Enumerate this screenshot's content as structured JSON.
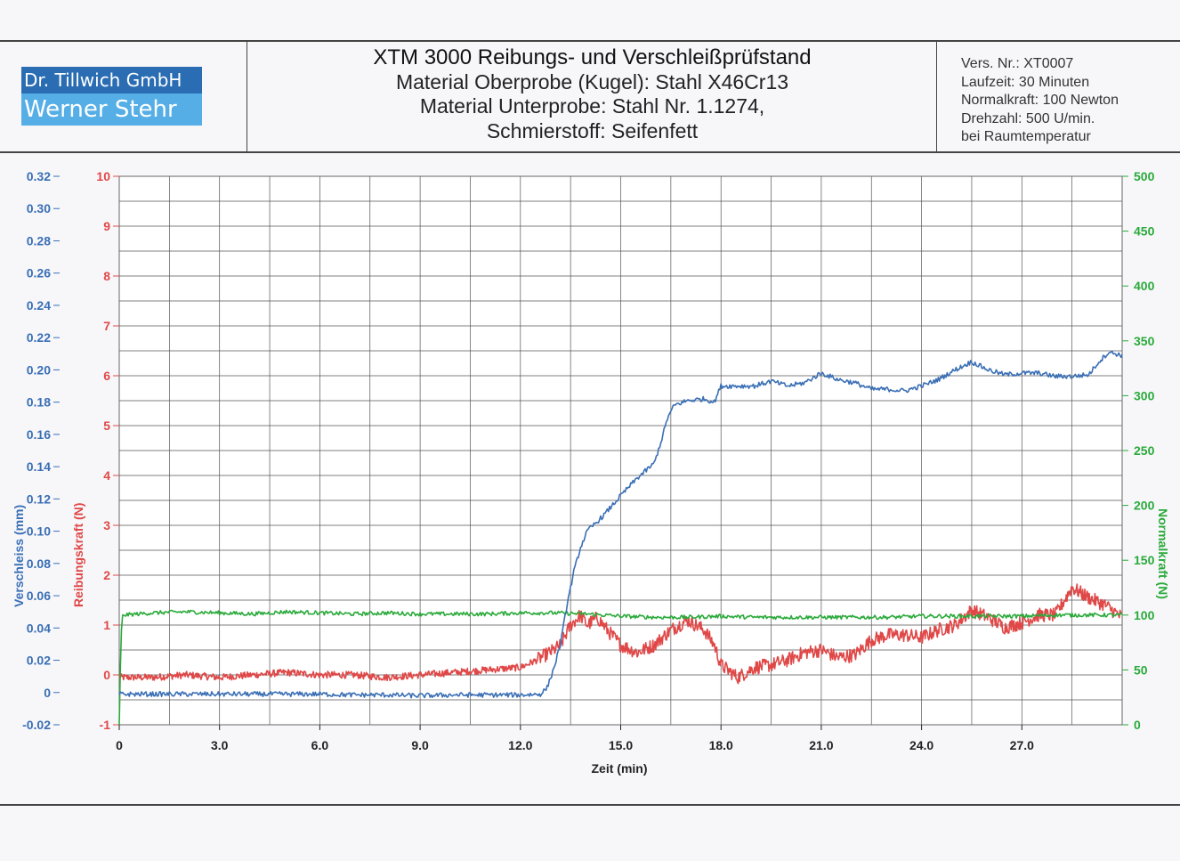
{
  "logo": {
    "line1": "Dr. Tillwich GmbH",
    "line2": "Werner Stehr"
  },
  "header": {
    "title": "XTM 3000 Reibungs- und Verschleißprüfstand",
    "line2": "Material Oberprobe (Kugel): Stahl X46Cr13",
    "line3": "Material Unterprobe: Stahl Nr. 1.1274,",
    "line4": "Schmierstoff: Seifenfett"
  },
  "info": {
    "line1": "Vers. Nr.: XT0007",
    "line2": "Laufzeit: 30 Minuten",
    "line3": "Normalkraft: 100 Newton",
    "line4": "Drehzahl: 500 U/min.",
    "line5": "bei Raumtemperatur"
  },
  "colors": {
    "blue": "#3a6fb5",
    "red": "#e04848",
    "green": "#2aaa3a",
    "grid": "#555555"
  },
  "chart_data": {
    "type": "line",
    "xlabel": "Zeit (min)",
    "xlim": [
      0,
      30
    ],
    "x_ticks": [
      0,
      3,
      6,
      9,
      12,
      15,
      18,
      21,
      24,
      27
    ],
    "x_tick_labels": [
      "0",
      "3.0",
      "6.0",
      "9.0",
      "12.0",
      "15.0",
      "18.0",
      "21.0",
      "24.0",
      "27.0"
    ],
    "grid": true,
    "axes": {
      "verschleiss": {
        "label": "Verschleiss (mm)",
        "ylim": [
          -0.02,
          0.32
        ],
        "ticks": [
          -0.02,
          0,
          0.02,
          0.04,
          0.06,
          0.08,
          0.1,
          0.12,
          0.14,
          0.16,
          0.18,
          0.2,
          0.22,
          0.24,
          0.26,
          0.28,
          0.3,
          0.32
        ],
        "tick_labels": [
          "-0.02",
          "0",
          "0.02",
          "0.04",
          "0.06",
          "0.08",
          "0.10",
          "0.12",
          "0.14",
          "0.16",
          "0.18",
          "0.20",
          "0.22",
          "0.24",
          "0.26",
          "0.28",
          "0.30",
          "0.32"
        ]
      },
      "reibungskraft": {
        "label": "Reibungskraft (N)",
        "ylim": [
          -1,
          10
        ],
        "ticks": [
          -1,
          0,
          1,
          2,
          3,
          4,
          5,
          6,
          7,
          8,
          9,
          10
        ],
        "tick_labels": [
          "-1",
          "0",
          "1",
          "2",
          "3",
          "4",
          "5",
          "6",
          "7",
          "8",
          "9",
          "10"
        ]
      },
      "normalkraft": {
        "label": "Normalkraft (N)",
        "ylim": [
          0,
          500
        ],
        "ticks": [
          0,
          50,
          100,
          150,
          200,
          250,
          300,
          350,
          400,
          450,
          500
        ],
        "tick_labels": [
          "0",
          "50",
          "100",
          "150",
          "200",
          "250",
          "300",
          "350",
          "400",
          "450",
          "500"
        ]
      }
    },
    "series": [
      {
        "axis": "verschleiss",
        "x": [
          0,
          1,
          2,
          3,
          4,
          5,
          6,
          7,
          8,
          9,
          10,
          11,
          12,
          12.6,
          12.8,
          13.0,
          13.2,
          13.4,
          13.6,
          13.8,
          14.0,
          14.5,
          15.0,
          15.5,
          16.0,
          16.2,
          16.4,
          16.6,
          17.0,
          17.5,
          17.8,
          18.0,
          18.5,
          19.0,
          19.5,
          20.0,
          20.5,
          21.0,
          21.5,
          22.0,
          22.5,
          23.0,
          23.5,
          24.0,
          24.5,
          25.0,
          25.5,
          26.0,
          26.5,
          27.0,
          27.5,
          28.0,
          28.5,
          29.0,
          29.3,
          29.6,
          30.0
        ],
        "values": [
          -0.001,
          -0.001,
          -0.001,
          -0.001,
          -0.001,
          -0.001,
          -0.001,
          -0.0015,
          -0.0015,
          -0.002,
          -0.0015,
          -0.0015,
          -0.0015,
          -0.001,
          0.003,
          0.015,
          0.03,
          0.055,
          0.075,
          0.09,
          0.1,
          0.11,
          0.122,
          0.133,
          0.142,
          0.155,
          0.17,
          0.178,
          0.181,
          0.182,
          0.18,
          0.19,
          0.19,
          0.19,
          0.193,
          0.19,
          0.192,
          0.198,
          0.194,
          0.192,
          0.188,
          0.188,
          0.187,
          0.19,
          0.194,
          0.2,
          0.205,
          0.2,
          0.197,
          0.198,
          0.198,
          0.196,
          0.196,
          0.197,
          0.205,
          0.211,
          0.209
        ]
      },
      {
        "axis": "reibungskraft",
        "x": [
          0,
          1,
          2,
          3,
          4,
          5,
          6,
          7,
          8,
          9,
          10,
          11,
          12,
          12.5,
          13.0,
          13.2,
          13.5,
          13.8,
          14.0,
          14.3,
          14.6,
          15.0,
          15.5,
          16.0,
          16.5,
          17.0,
          17.5,
          17.8,
          18.0,
          18.5,
          19.0,
          19.5,
          20.0,
          20.5,
          21.0,
          21.5,
          22.0,
          22.5,
          23.0,
          23.5,
          24.0,
          24.5,
          25.0,
          25.5,
          26.0,
          26.5,
          27.0,
          27.5,
          28.0,
          28.5,
          29.0,
          29.5,
          30.0
        ],
        "values": [
          -0.05,
          -0.05,
          0.0,
          -0.05,
          0.0,
          0.05,
          0.0,
          0.0,
          -0.05,
          0.0,
          0.05,
          0.1,
          0.15,
          0.3,
          0.5,
          0.6,
          1.0,
          1.2,
          1.0,
          1.15,
          0.9,
          0.6,
          0.45,
          0.6,
          0.9,
          1.1,
          0.9,
          0.6,
          0.2,
          -0.05,
          0.15,
          0.2,
          0.3,
          0.45,
          0.5,
          0.35,
          0.4,
          0.7,
          0.8,
          0.8,
          0.75,
          0.9,
          1.0,
          1.3,
          1.15,
          0.95,
          1.05,
          1.2,
          1.2,
          1.75,
          1.55,
          1.4,
          1.15
        ]
      },
      {
        "axis": "normalkraft",
        "x": [
          0,
          0.05,
          0.1,
          1,
          2,
          3,
          4,
          5,
          6,
          7,
          8,
          9,
          10,
          11,
          12,
          13,
          14,
          15,
          16,
          17,
          18,
          19,
          20,
          21,
          22,
          23,
          24,
          25,
          26,
          27,
          28,
          29,
          30
        ],
        "values": [
          0,
          80,
          100,
          102,
          103,
          102,
          101,
          103,
          102,
          101,
          102,
          101,
          101,
          101,
          102,
          102,
          101,
          99,
          98,
          98,
          99,
          98,
          98,
          98,
          98,
          98,
          99,
          99,
          99,
          99,
          100,
          100,
          100
        ]
      }
    ]
  }
}
